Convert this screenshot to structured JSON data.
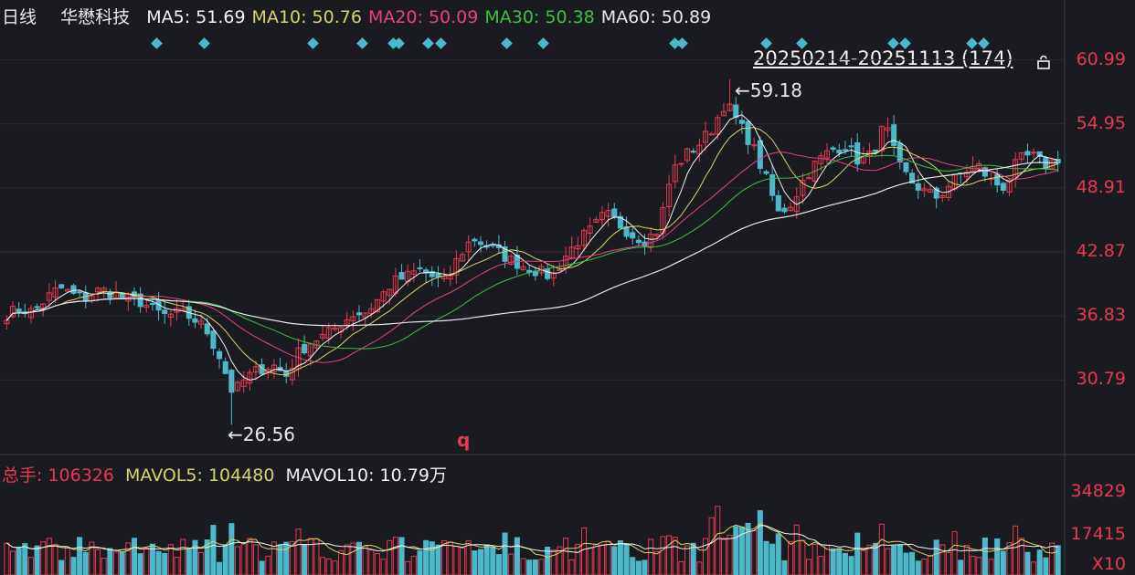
{
  "header": {
    "period": "日线",
    "name": "华懋科技",
    "ma": [
      {
        "label": "MA5:",
        "value": "51.69",
        "color": "#f2f2f2"
      },
      {
        "label": "MA10:",
        "value": "50.76",
        "color": "#d7d36a"
      },
      {
        "label": "MA20:",
        "value": "50.09",
        "color": "#e8407e"
      },
      {
        "label": "MA30:",
        "value": "50.38",
        "color": "#3cbf46"
      },
      {
        "label": "MA60:",
        "value": "50.89",
        "color": "#e8e8e8"
      }
    ]
  },
  "range_label": "20250214-20251113 (174)",
  "marker_q": "q",
  "annotations": {
    "high": "59.18",
    "low": "26.56"
  },
  "volume_header": {
    "total_label": "总手:",
    "total_value": "106326",
    "mavol5_label": "MAVOL5:",
    "mavol5_value": "104480",
    "mavol10_label": "MAVOL10:",
    "mavol10_value": "10.79万"
  },
  "chart_data": {
    "type": "candlestick",
    "price_ticks": [
      "60.99",
      "54.95",
      "48.91",
      "42.87",
      "36.83",
      "30.79"
    ],
    "volume_ticks": [
      "34829",
      "17415",
      "X10"
    ],
    "high": 59.18,
    "low": 26.56,
    "close_path": [
      37.0,
      37.5,
      37.2,
      38.5,
      39.5,
      38.8,
      38.6,
      39.3,
      39.0,
      38.4,
      38.2,
      37.4,
      36.8,
      37.1,
      36.6,
      35.5,
      33.0,
      29.5,
      31.0,
      31.8,
      32.2,
      31.2,
      33.5,
      34.5,
      35.0,
      36.0,
      37.0,
      37.2,
      38.5,
      40.0,
      40.5,
      41.2,
      40.5,
      40.0,
      42.5,
      44.2,
      43.5,
      42.8,
      42.0,
      41.5,
      41.0,
      40.5,
      42.5,
      44.0,
      45.0,
      46.5,
      45.5,
      44.5,
      44.0,
      45.0,
      50.5,
      52.0,
      53.0,
      54.5,
      57.0,
      55.0,
      53.0,
      50.0,
      46.5,
      47.5,
      50.0,
      51.5,
      52.5,
      53.0,
      51.5,
      52.0,
      55.0,
      51.0,
      49.5,
      48.5,
      48.0,
      49.5,
      50.5,
      51.0,
      49.5,
      49.0,
      51.5,
      52.0,
      51.0,
      51.7
    ],
    "ma_colors": [
      "#f2f2f2",
      "#d7d36a",
      "#e8407e",
      "#3cbf46",
      "#e8e8e8"
    ],
    "colors": {
      "up": "#e8384f",
      "down": "#4cb8c9"
    }
  }
}
